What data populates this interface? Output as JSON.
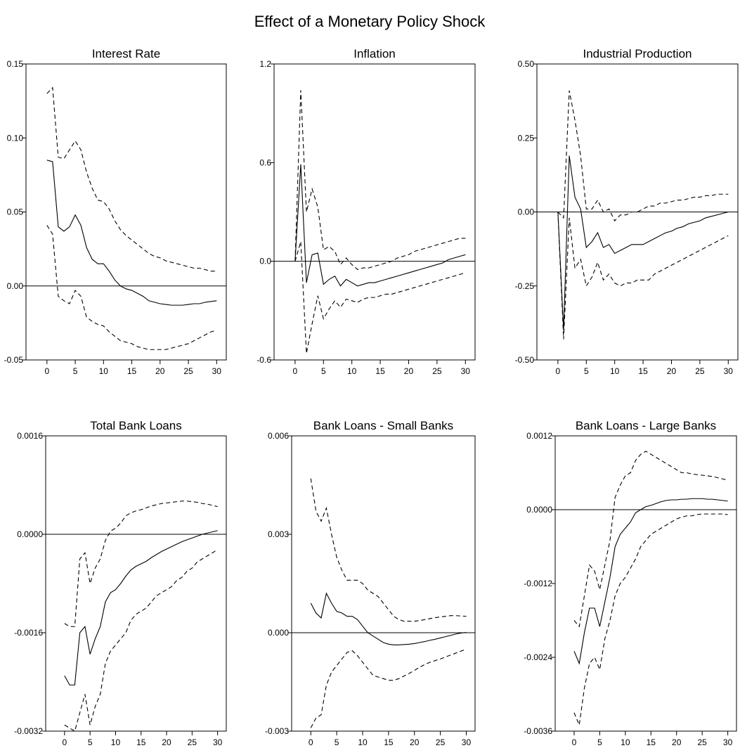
{
  "title": "Effect of a Monetary Policy Shock",
  "chart_data": [
    {
      "type": "line",
      "title": "Interest Rate",
      "x": [
        0,
        1,
        2,
        3,
        4,
        5,
        6,
        7,
        8,
        9,
        10,
        11,
        12,
        13,
        14,
        15,
        16,
        17,
        18,
        19,
        20,
        21,
        22,
        23,
        24,
        25,
        26,
        27,
        28,
        29,
        30
      ],
      "xlim": [
        -3.7,
        31.7
      ],
      "xticks": [
        0,
        5,
        10,
        15,
        20,
        25,
        30
      ],
      "ylim": [
        -0.05,
        0.15
      ],
      "yticks": [
        -0.05,
        {
          "value": 0,
          "label": "0.00"
        },
        0.05,
        {
          "value": 0.1,
          "label": "0.10"
        },
        0.15
      ],
      "zero_line": true,
      "series": [
        {
          "color": "#000000",
          "style": "solid",
          "values": [
            0.085,
            0.084,
            0.04,
            0.037,
            0.04,
            0.048,
            0.041,
            0.026,
            0.018,
            0.015,
            0.015,
            0.01,
            0.004,
            0.0,
            -0.002,
            -0.003,
            -0.005,
            -0.007,
            -0.01,
            -0.011,
            -0.012,
            -0.0125,
            -0.013,
            -0.013,
            -0.013,
            -0.0125,
            -0.012,
            -0.012,
            -0.011,
            -0.0105,
            -0.01
          ]
        },
        {
          "color": "#000000",
          "style": "dashed",
          "values": [
            0.13,
            0.134,
            0.087,
            0.086,
            0.092,
            0.098,
            0.092,
            0.077,
            0.066,
            0.058,
            0.057,
            0.052,
            0.044,
            0.038,
            0.034,
            0.031,
            0.028,
            0.025,
            0.022,
            0.02,
            0.019,
            0.017,
            0.016,
            0.015,
            0.014,
            0.013,
            0.012,
            0.012,
            0.011,
            0.01,
            0.01
          ]
        },
        {
          "color": "#000000",
          "style": "dashed",
          "values": [
            0.041,
            0.035,
            -0.007,
            -0.01,
            -0.012,
            -0.003,
            -0.007,
            -0.021,
            -0.024,
            -0.026,
            -0.027,
            -0.031,
            -0.034,
            -0.037,
            -0.038,
            -0.039,
            -0.041,
            -0.042,
            -0.043,
            -0.043,
            -0.043,
            -0.043,
            -0.042,
            -0.041,
            -0.04,
            -0.039,
            -0.037,
            -0.035,
            -0.033,
            -0.031,
            -0.03
          ]
        }
      ]
    },
    {
      "type": "line",
      "title": "Inflation",
      "x": [
        0,
        1,
        2,
        3,
        4,
        5,
        6,
        7,
        8,
        9,
        10,
        11,
        12,
        13,
        14,
        15,
        16,
        17,
        18,
        19,
        20,
        21,
        22,
        23,
        24,
        25,
        26,
        27,
        28,
        29,
        30
      ],
      "xlim": [
        -3.7,
        31.7
      ],
      "xticks": [
        0,
        5,
        10,
        15,
        20,
        25,
        30
      ],
      "ylim": [
        -0.6,
        1.2
      ],
      "yticks": [
        -0.6,
        {
          "value": 0,
          "label": "0.0"
        },
        0.6,
        1.2
      ],
      "zero_line": true,
      "series": [
        {
          "color": "#000000",
          "style": "solid",
          "values": [
            0.0,
            0.59,
            -0.13,
            0.04,
            0.05,
            -0.14,
            -0.11,
            -0.09,
            -0.15,
            -0.11,
            -0.13,
            -0.15,
            -0.14,
            -0.13,
            -0.13,
            -0.12,
            -0.11,
            -0.1,
            -0.09,
            -0.08,
            -0.07,
            -0.06,
            -0.05,
            -0.04,
            -0.03,
            -0.02,
            -0.01,
            0.01,
            0.02,
            0.03,
            0.04
          ]
        },
        {
          "color": "#000000",
          "style": "dashed",
          "values": [
            0.0,
            1.04,
            0.3,
            0.44,
            0.33,
            0.07,
            0.09,
            0.06,
            -0.02,
            0.02,
            -0.02,
            -0.05,
            -0.04,
            -0.04,
            -0.03,
            -0.02,
            -0.01,
            0.0,
            0.02,
            0.03,
            0.04,
            0.06,
            0.07,
            0.08,
            0.09,
            0.1,
            0.11,
            0.12,
            0.13,
            0.14,
            0.14
          ]
        },
        {
          "color": "#000000",
          "style": "dashed",
          "values": [
            0.0,
            0.12,
            -0.56,
            -0.38,
            -0.21,
            -0.35,
            -0.29,
            -0.24,
            -0.28,
            -0.23,
            -0.24,
            -0.25,
            -0.23,
            -0.22,
            -0.22,
            -0.21,
            -0.2,
            -0.2,
            -0.19,
            -0.18,
            -0.17,
            -0.16,
            -0.15,
            -0.14,
            -0.13,
            -0.12,
            -0.11,
            -0.1,
            -0.09,
            -0.08,
            -0.07
          ]
        }
      ]
    },
    {
      "type": "line",
      "title": "Industrial Production",
      "x": [
        0,
        1,
        2,
        3,
        4,
        5,
        6,
        7,
        8,
        9,
        10,
        11,
        12,
        13,
        14,
        15,
        16,
        17,
        18,
        19,
        20,
        21,
        22,
        23,
        24,
        25,
        26,
        27,
        28,
        29,
        30
      ],
      "xlim": [
        -3.7,
        31.7
      ],
      "xticks": [
        0,
        5,
        10,
        15,
        20,
        25,
        30
      ],
      "ylim": [
        -0.5,
        0.5
      ],
      "yticks": [
        {
          "value": -0.5,
          "label": "-0.50"
        },
        -0.25,
        {
          "value": 0,
          "label": "0.00"
        },
        0.25,
        {
          "value": 0.5,
          "label": "0.50"
        }
      ],
      "zero_line": true,
      "series": [
        {
          "color": "#000000",
          "style": "solid",
          "values": [
            0.0,
            -0.4,
            0.19,
            0.05,
            0.01,
            -0.12,
            -0.1,
            -0.07,
            -0.12,
            -0.11,
            -0.14,
            -0.13,
            -0.12,
            -0.11,
            -0.11,
            -0.11,
            -0.1,
            -0.09,
            -0.08,
            -0.07,
            -0.065,
            -0.055,
            -0.05,
            -0.04,
            -0.035,
            -0.03,
            -0.02,
            -0.015,
            -0.01,
            -0.005,
            0.0
          ]
        },
        {
          "color": "#000000",
          "style": "dashed",
          "values": [
            0.0,
            -0.02,
            0.41,
            0.31,
            0.19,
            0.01,
            0.01,
            0.04,
            0.0,
            0.01,
            -0.03,
            -0.01,
            -0.01,
            0.0,
            0.0,
            0.01,
            0.02,
            0.02,
            0.03,
            0.03,
            0.035,
            0.04,
            0.04,
            0.045,
            0.05,
            0.05,
            0.055,
            0.055,
            0.06,
            0.06,
            0.06
          ]
        },
        {
          "color": "#000000",
          "style": "dashed",
          "values": [
            0.0,
            -0.43,
            -0.02,
            -0.19,
            -0.16,
            -0.25,
            -0.22,
            -0.17,
            -0.23,
            -0.21,
            -0.24,
            -0.25,
            -0.24,
            -0.24,
            -0.23,
            -0.23,
            -0.23,
            -0.21,
            -0.2,
            -0.19,
            -0.18,
            -0.17,
            -0.16,
            -0.15,
            -0.14,
            -0.13,
            -0.12,
            -0.11,
            -0.1,
            -0.09,
            -0.08
          ]
        }
      ]
    },
    {
      "type": "line",
      "title": "Total Bank Loans",
      "x": [
        0,
        1,
        2,
        3,
        4,
        5,
        6,
        7,
        8,
        9,
        10,
        11,
        12,
        13,
        14,
        15,
        16,
        17,
        18,
        19,
        20,
        21,
        22,
        23,
        24,
        25,
        26,
        27,
        28,
        29,
        30
      ],
      "xlim": [
        -3.7,
        31.7
      ],
      "xticks": [
        0,
        5,
        10,
        15,
        20,
        25,
        30
      ],
      "ylim": [
        -0.0032,
        0.0016
      ],
      "yticks": [
        -0.0032,
        -0.0016,
        {
          "value": 0,
          "label": "0.0000"
        },
        0.0016
      ],
      "zero_line": true,
      "series": [
        {
          "color": "#000000",
          "style": "solid",
          "values": [
            -0.0023,
            -0.00245,
            -0.00245,
            -0.0016,
            -0.0015,
            -0.00195,
            -0.0017,
            -0.0015,
            -0.0011,
            -0.00095,
            -0.0009,
            -0.0008,
            -0.00068,
            -0.00058,
            -0.00052,
            -0.00048,
            -0.00044,
            -0.00038,
            -0.00033,
            -0.00028,
            -0.00024,
            -0.0002,
            -0.00016,
            -0.00012,
            -9e-05,
            -6e-05,
            -3e-05,
            0.0,
            2e-05,
            4e-05,
            6e-05
          ]
        },
        {
          "color": "#000000",
          "style": "dashed",
          "values": [
            -0.00145,
            -0.0015,
            -0.0015,
            -0.0004,
            -0.0003,
            -0.0008,
            -0.00055,
            -0.0004,
            -0.0001,
            5e-05,
            0.0001,
            0.00018,
            0.0003,
            0.00035,
            0.00038,
            0.0004,
            0.00043,
            0.00046,
            0.00048,
            0.0005,
            0.00051,
            0.00052,
            0.00053,
            0.00054,
            0.00054,
            0.00053,
            0.00052,
            0.0005,
            0.00049,
            0.00047,
            0.00045
          ]
        },
        {
          "color": "#000000",
          "style": "dashed",
          "values": [
            -0.0031,
            -0.00315,
            -0.0032,
            -0.0029,
            -0.0026,
            -0.0031,
            -0.0028,
            -0.0026,
            -0.0021,
            -0.0019,
            -0.0018,
            -0.0017,
            -0.0016,
            -0.0014,
            -0.0013,
            -0.00125,
            -0.0012,
            -0.0011,
            -0.001,
            -0.00095,
            -0.0009,
            -0.00085,
            -0.00075,
            -0.0007,
            -0.0006,
            -0.00055,
            -0.00045,
            -0.0004,
            -0.00035,
            -0.0003,
            -0.00025
          ]
        }
      ]
    },
    {
      "type": "line",
      "title": "Bank Loans - Small Banks",
      "x": [
        0,
        1,
        2,
        3,
        4,
        5,
        6,
        7,
        8,
        9,
        10,
        11,
        12,
        13,
        14,
        15,
        16,
        17,
        18,
        19,
        20,
        21,
        22,
        23,
        24,
        25,
        26,
        27,
        28,
        29,
        30
      ],
      "xlim": [
        -3.7,
        31.7
      ],
      "xticks": [
        0,
        5,
        10,
        15,
        20,
        25,
        30
      ],
      "ylim": [
        -0.003,
        0.006
      ],
      "yticks": [
        -0.003,
        {
          "value": 0,
          "label": "0.000"
        },
        0.003,
        0.006
      ],
      "zero_line": true,
      "series": [
        {
          "color": "#000000",
          "style": "solid",
          "values": [
            0.0009,
            0.0006,
            0.00045,
            0.0012,
            0.0009,
            0.00065,
            0.0006,
            0.0005,
            0.0005,
            0.0004,
            0.0002,
            0.0,
            -0.0001,
            -0.0002,
            -0.0003,
            -0.00035,
            -0.00037,
            -0.00037,
            -0.00036,
            -0.00035,
            -0.00033,
            -0.0003,
            -0.00027,
            -0.00023,
            -0.0002,
            -0.00016,
            -0.00012,
            -8e-05,
            -4e-05,
            -1e-05,
            1e-05
          ]
        },
        {
          "color": "#000000",
          "style": "dashed",
          "values": [
            0.0047,
            0.0037,
            0.0034,
            0.0038,
            0.003,
            0.0023,
            0.0019,
            0.0016,
            0.0016,
            0.0016,
            0.0015,
            0.0013,
            0.0012,
            0.0011,
            0.0009,
            0.0007,
            0.0005,
            0.0004,
            0.00035,
            0.00035,
            0.00035,
            0.00037,
            0.0004,
            0.00043,
            0.00046,
            0.00048,
            0.0005,
            0.00052,
            0.00052,
            0.00051,
            0.0005
          ]
        },
        {
          "color": "#000000",
          "style": "dashed",
          "values": [
            -0.0029,
            -0.0026,
            -0.0025,
            -0.0016,
            -0.0012,
            -0.001,
            -0.0008,
            -0.0006,
            -0.00055,
            -0.0007,
            -0.0009,
            -0.0011,
            -0.0013,
            -0.00135,
            -0.0014,
            -0.00145,
            -0.00145,
            -0.0014,
            -0.00132,
            -0.00124,
            -0.00115,
            -0.00105,
            -0.00097,
            -0.0009,
            -0.00085,
            -0.0008,
            -0.00074,
            -0.00068,
            -0.00062,
            -0.00056,
            -0.0005
          ]
        }
      ]
    },
    {
      "type": "line",
      "title": "Bank Loans - Large Banks",
      "x": [
        0,
        1,
        2,
        3,
        4,
        5,
        6,
        7,
        8,
        9,
        10,
        11,
        12,
        13,
        14,
        15,
        16,
        17,
        18,
        19,
        20,
        21,
        22,
        23,
        24,
        25,
        26,
        27,
        28,
        29,
        30
      ],
      "xlim": [
        -3.7,
        31.7
      ],
      "xticks": [
        0,
        5,
        10,
        15,
        20,
        25,
        30
      ],
      "ylim": [
        -0.0036,
        0.0012
      ],
      "yticks": [
        -0.0036,
        -0.0024,
        -0.0012,
        {
          "value": 0,
          "label": "0.0000"
        },
        0.0012
      ],
      "zero_line": true,
      "series": [
        {
          "color": "#000000",
          "style": "solid",
          "values": [
            -0.0023,
            -0.0025,
            -0.002,
            -0.0016,
            -0.0016,
            -0.0019,
            -0.0015,
            -0.0011,
            -0.0006,
            -0.0004,
            -0.0003,
            -0.0002,
            -5e-05,
            0.0,
            5e-05,
            7e-05,
            0.0001,
            0.00013,
            0.00015,
            0.00016,
            0.00016,
            0.00017,
            0.00017,
            0.00018,
            0.00018,
            0.00018,
            0.00017,
            0.00017,
            0.00016,
            0.00015,
            0.00014
          ]
        },
        {
          "color": "#000000",
          "style": "dashed",
          "values": [
            -0.0018,
            -0.0019,
            -0.0014,
            -0.0009,
            -0.001,
            -0.0013,
            -0.0009,
            -0.0005,
            0.0002,
            0.0004,
            0.00055,
            0.0006,
            0.0008,
            0.0009,
            0.00095,
            0.0009,
            0.00085,
            0.0008,
            0.00075,
            0.0007,
            0.00065,
            0.0006,
            0.0006,
            0.00058,
            0.00057,
            0.00056,
            0.00055,
            0.00054,
            0.00052,
            0.0005,
            0.00048
          ]
        },
        {
          "color": "#000000",
          "style": "dashed",
          "values": [
            -0.0033,
            -0.0035,
            -0.0029,
            -0.0025,
            -0.0024,
            -0.0026,
            -0.0021,
            -0.0018,
            -0.0014,
            -0.0012,
            -0.0011,
            -0.00095,
            -0.0008,
            -0.0006,
            -0.0005,
            -0.0004,
            -0.00035,
            -0.0003,
            -0.00025,
            -0.0002,
            -0.00015,
            -0.00012,
            -0.0001,
            -0.0001,
            -8e-05,
            -7e-05,
            -7e-05,
            -7e-05,
            -7e-05,
            -7e-05,
            -8e-05
          ]
        }
      ]
    }
  ]
}
